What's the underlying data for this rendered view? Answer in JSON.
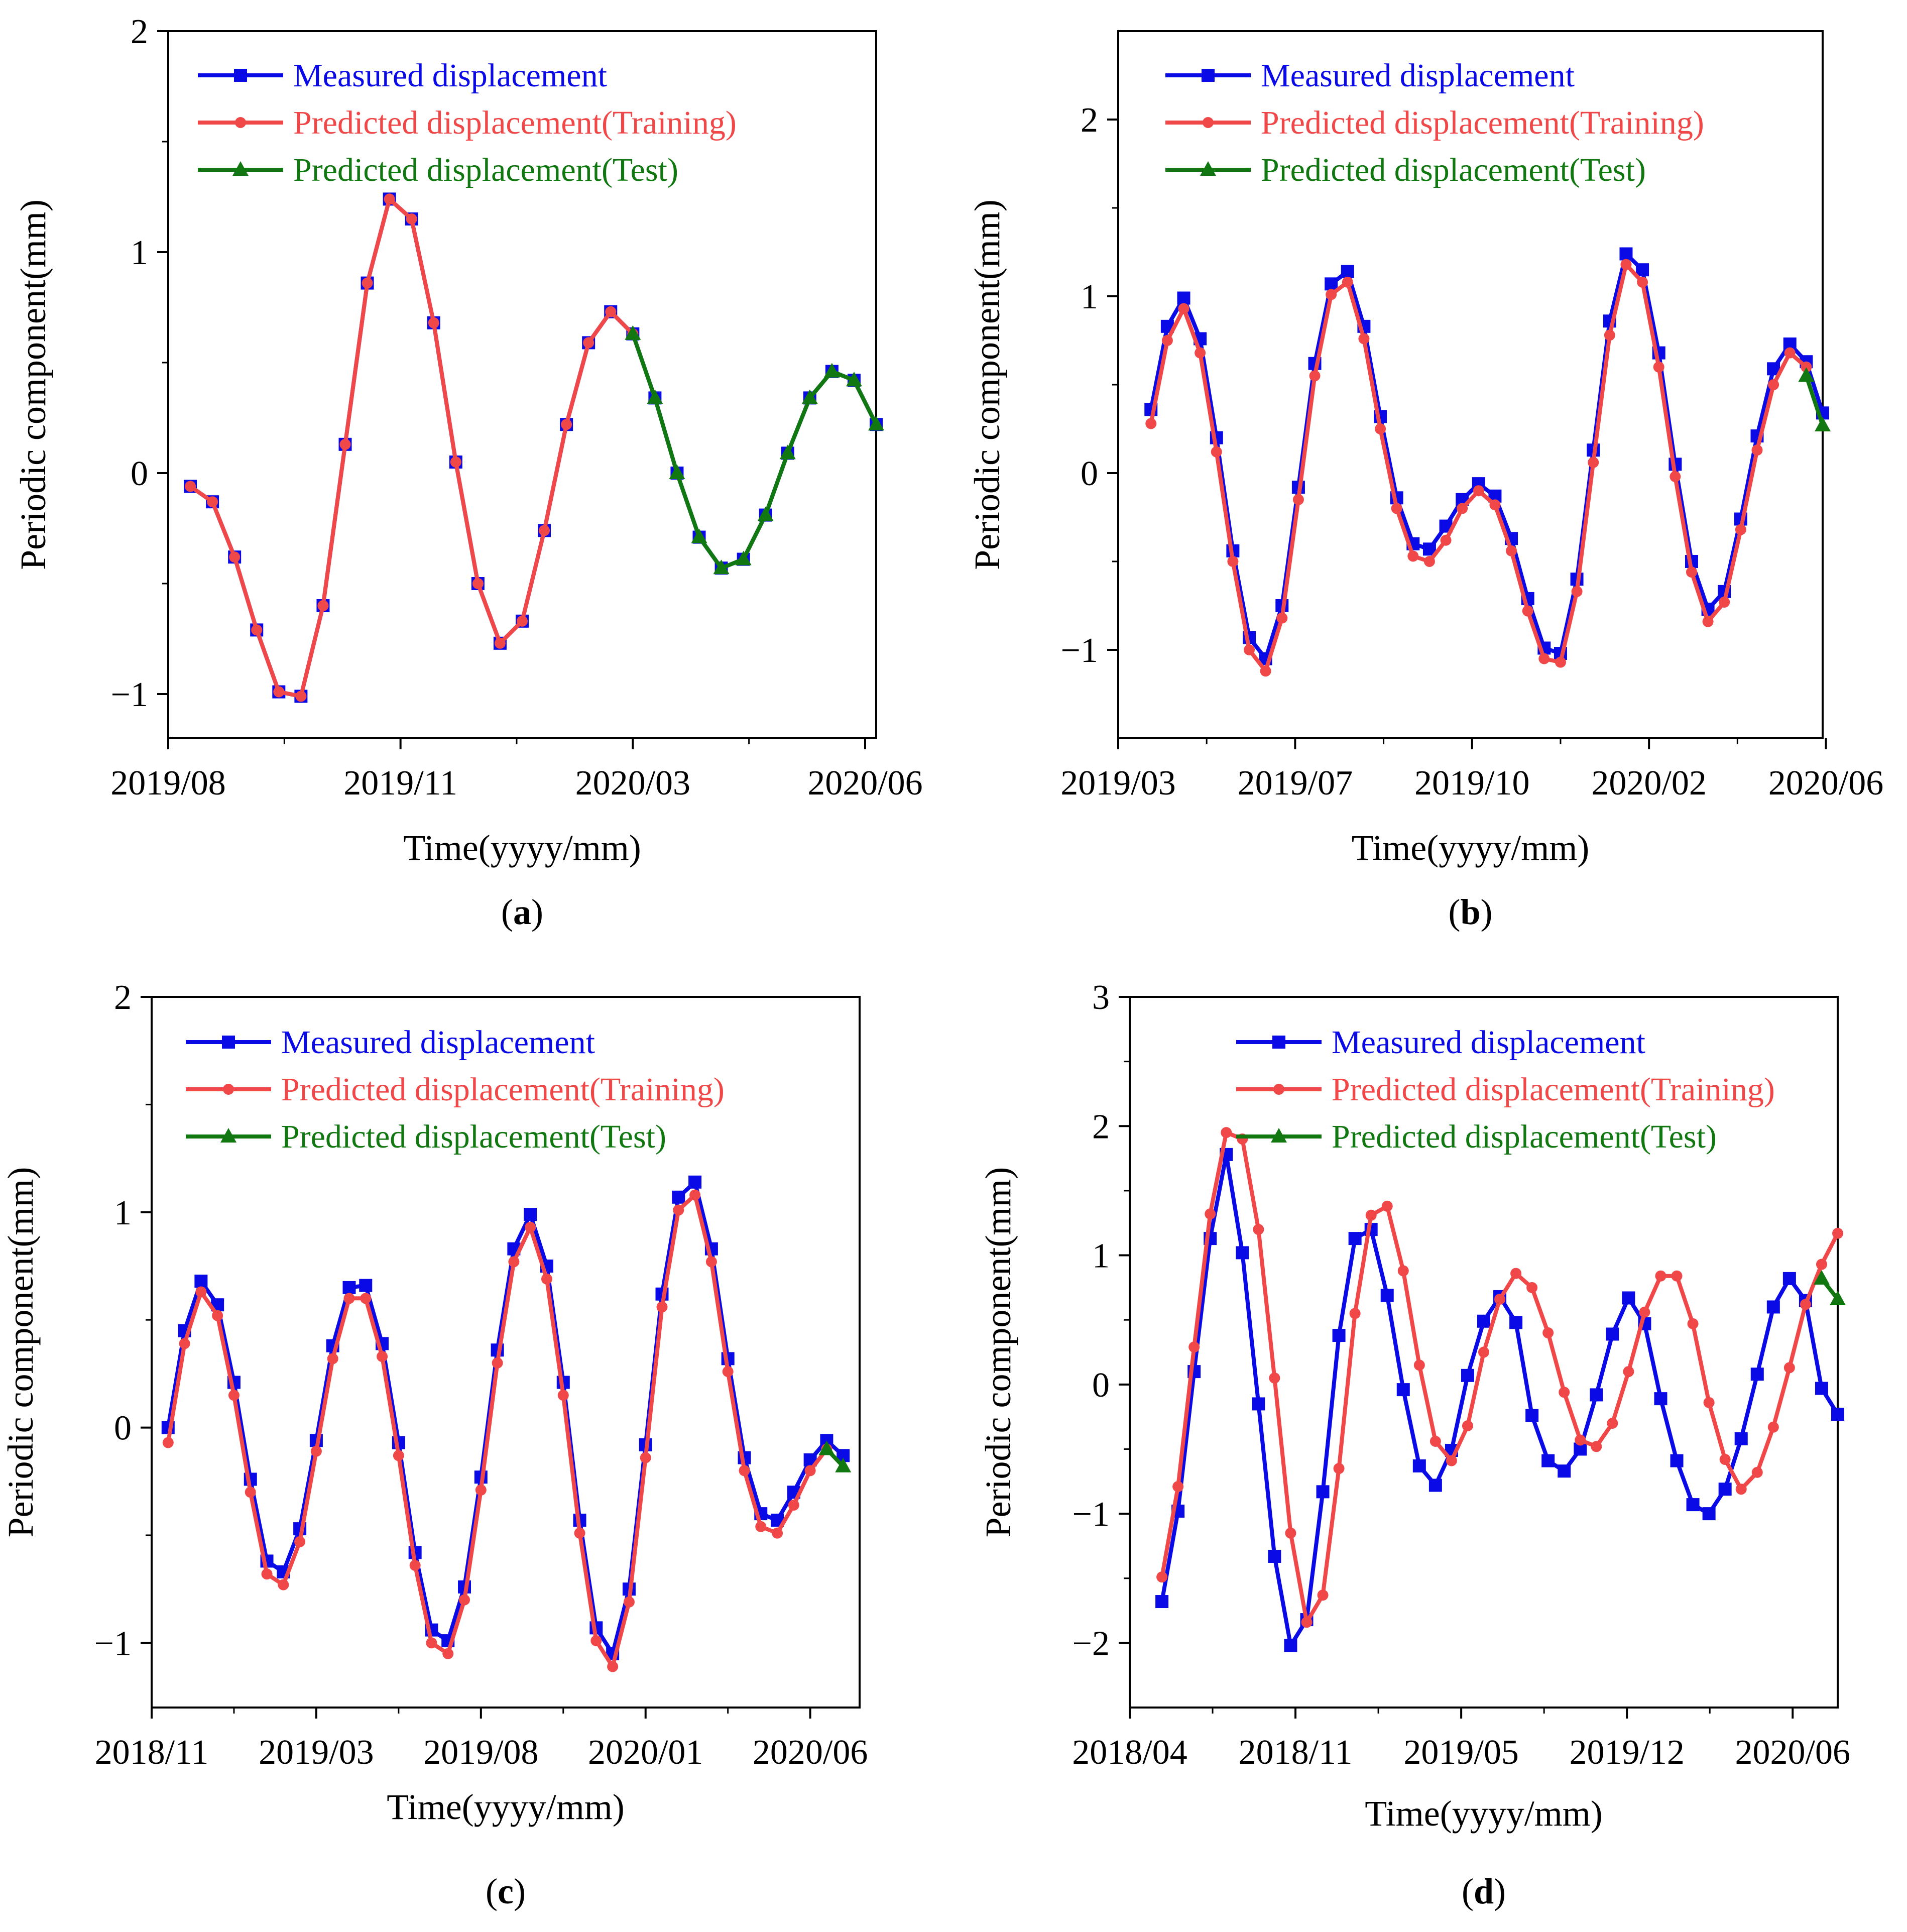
{
  "colors": {
    "measured": "#0a0ae6",
    "training": "#f04848",
    "test": "#117711",
    "axis": "#000000"
  },
  "chart_data": [
    {
      "type": "line",
      "panel_label": "a",
      "xlabel": "Time(yyyy/mm)",
      "ylabel": "Periodic component(mm)",
      "ylim": [
        -1.2,
        2
      ],
      "xlim": [
        0,
        32
      ],
      "y_ticks": [
        -1,
        0,
        1,
        2
      ],
      "y_tick_labels": [
        "−1",
        "0",
        "1",
        "2"
      ],
      "x_ticks": [
        0,
        10.5,
        21,
        31.5
      ],
      "x_tick_labels": [
        "2019/08",
        "2019/11",
        "2020/03",
        "2020/06"
      ],
      "legend": {
        "position": "top-left",
        "entries": [
          "Measured displacement",
          "Predicted displacement(Training)",
          "Predicted displacement(Test)"
        ]
      },
      "series": [
        {
          "name": "Measured displacement",
          "marker": "square",
          "x": [
            1,
            2,
            3,
            4,
            5,
            6,
            7,
            8,
            9,
            10,
            11,
            12,
            13,
            14,
            15,
            16,
            17,
            18,
            19,
            20,
            21,
            22,
            23,
            24,
            25,
            26,
            27,
            28,
            29,
            30,
            31,
            32
          ],
          "values": [
            -0.06,
            -0.13,
            -0.38,
            -0.71,
            -0.99,
            -1.01,
            -0.6,
            0.13,
            0.86,
            1.24,
            1.15,
            0.68,
            0.05,
            -0.5,
            -0.77,
            -0.67,
            -0.26,
            0.22,
            0.59,
            0.73,
            0.63,
            0.34,
            0.0,
            -0.29,
            -0.43,
            -0.39,
            -0.19,
            0.09,
            0.34,
            0.46,
            0.42,
            0.22
          ]
        },
        {
          "name": "Predicted displacement(Training)",
          "marker": "circle",
          "x": [
            1,
            2,
            3,
            4,
            5,
            6,
            7,
            8,
            9,
            10,
            11,
            12,
            13,
            14,
            15,
            16,
            17,
            18,
            19,
            20,
            21
          ],
          "values": [
            -0.06,
            -0.13,
            -0.38,
            -0.71,
            -0.99,
            -1.01,
            -0.6,
            0.13,
            0.86,
            1.24,
            1.15,
            0.68,
            0.05,
            -0.5,
            -0.77,
            -0.67,
            -0.26,
            0.22,
            0.59,
            0.73,
            0.63
          ]
        },
        {
          "name": "Predicted displacement(Test)",
          "marker": "triangle",
          "x": [
            21,
            22,
            23,
            24,
            25,
            26,
            27,
            28,
            29,
            30,
            31,
            32
          ],
          "values": [
            0.63,
            0.34,
            0.0,
            -0.29,
            -0.43,
            -0.39,
            -0.19,
            0.09,
            0.34,
            0.46,
            0.42,
            0.22
          ]
        }
      ]
    },
    {
      "type": "line",
      "panel_label": "b",
      "xlabel": "Time(yyyy/mm)",
      "ylabel": "Periodic component(mm)",
      "ylim": [
        -1.5,
        2.5
      ],
      "xlim": [
        0,
        43
      ],
      "y_ticks": [
        -1,
        0,
        1,
        2
      ],
      "y_tick_labels": [
        "−1",
        "0",
        "1",
        "2"
      ],
      "x_ticks": [
        0,
        10.8,
        21.6,
        32.4,
        43.2
      ],
      "x_tick_labels": [
        "2019/03",
        "2019/07",
        "2019/10",
        "2020/02",
        "2020/06"
      ],
      "legend": {
        "position": "top-left",
        "entries": [
          "Measured displacement",
          "Predicted displacement(Training)",
          "Predicted displacement(Test)"
        ]
      },
      "series": [
        {
          "name": "Measured displacement",
          "marker": "square",
          "x": [
            2,
            3,
            4,
            5,
            6,
            7,
            8,
            9,
            10,
            11,
            12,
            13,
            14,
            15,
            16,
            17,
            18,
            19,
            20,
            21,
            22,
            23,
            24,
            25,
            26,
            27,
            28,
            29,
            30,
            31,
            32,
            33,
            34,
            35,
            36,
            37,
            38,
            39,
            40,
            41,
            42,
            43
          ],
          "values": [
            0.36,
            0.83,
            0.99,
            0.76,
            0.2,
            -0.44,
            -0.93,
            -1.05,
            -0.75,
            -0.08,
            0.62,
            1.07,
            1.14,
            0.83,
            0.32,
            -0.14,
            -0.4,
            -0.43,
            -0.3,
            -0.15,
            -0.06,
            -0.13,
            -0.37,
            -0.71,
            -0.99,
            -1.02,
            -0.6,
            0.13,
            0.86,
            1.24,
            1.15,
            0.68,
            0.05,
            -0.5,
            -0.77,
            -0.67,
            -0.26,
            0.21,
            0.59,
            0.73,
            0.63,
            0.34
          ]
        },
        {
          "name": "Predicted displacement(Training)",
          "marker": "circle",
          "x": [
            2,
            3,
            4,
            5,
            6,
            7,
            8,
            9,
            10,
            11,
            12,
            13,
            14,
            15,
            16,
            17,
            18,
            19,
            20,
            21,
            22,
            23,
            24,
            25,
            26,
            27,
            28,
            29,
            30,
            31,
            32,
            33,
            34,
            35,
            36,
            37,
            38,
            39,
            40,
            41,
            42
          ],
          "values": [
            0.28,
            0.75,
            0.93,
            0.68,
            0.12,
            -0.5,
            -1.0,
            -1.12,
            -0.82,
            -0.15,
            0.55,
            1.01,
            1.08,
            0.76,
            0.25,
            -0.2,
            -0.47,
            -0.5,
            -0.38,
            -0.2,
            -0.1,
            -0.18,
            -0.44,
            -0.78,
            -1.05,
            -1.07,
            -0.67,
            0.06,
            0.78,
            1.18,
            1.08,
            0.6,
            -0.02,
            -0.56,
            -0.84,
            -0.73,
            -0.32,
            0.13,
            0.5,
            0.68,
            0.6
          ]
        },
        {
          "name": "Predicted displacement(Test)",
          "marker": "triangle",
          "x": [
            42,
            43
          ],
          "values": [
            0.55,
            0.27
          ]
        }
      ]
    },
    {
      "type": "line",
      "panel_label": "c",
      "xlabel": "Time(yyyy/mm)",
      "ylabel": "Periodic component(mm)",
      "ylim": [
        -1.3,
        2
      ],
      "xlim": [
        0,
        43
      ],
      "y_ticks": [
        -1,
        0,
        1,
        2
      ],
      "y_tick_labels": [
        "−1",
        "0",
        "1",
        "2"
      ],
      "x_ticks": [
        0,
        10,
        20,
        30,
        40
      ],
      "x_tick_labels": [
        "2018/11",
        "2019/03",
        "2019/08",
        "2020/01",
        "2020/06"
      ],
      "legend": {
        "position": "top-left",
        "entries": [
          "Measured displacement",
          "Predicted displacement(Training)",
          "Predicted displacement(Test)"
        ]
      },
      "series": [
        {
          "name": "Measured displacement",
          "marker": "square",
          "x": [
            1,
            2,
            3,
            4,
            5,
            6,
            7,
            8,
            9,
            10,
            11,
            12,
            13,
            14,
            15,
            16,
            17,
            18,
            19,
            20,
            21,
            22,
            23,
            24,
            25,
            26,
            27,
            28,
            29,
            30,
            31,
            32,
            33,
            34,
            35,
            36,
            37,
            38,
            39,
            40,
            41,
            42
          ],
          "values": [
            0.0,
            0.45,
            0.68,
            0.57,
            0.21,
            -0.24,
            -0.62,
            -0.67,
            -0.47,
            -0.06,
            0.38,
            0.65,
            0.66,
            0.39,
            -0.07,
            -0.58,
            -0.94,
            -0.99,
            -0.74,
            -0.23,
            0.36,
            0.83,
            0.99,
            0.75,
            0.21,
            -0.43,
            -0.93,
            -1.05,
            -0.75,
            -0.08,
            0.62,
            1.07,
            1.14,
            0.83,
            0.32,
            -0.14,
            -0.4,
            -0.43,
            -0.3,
            -0.15,
            -0.06,
            -0.13
          ]
        },
        {
          "name": "Predicted displacement(Training)",
          "marker": "circle",
          "x": [
            1,
            2,
            3,
            4,
            5,
            6,
            7,
            8,
            9,
            10,
            11,
            12,
            13,
            14,
            15,
            16,
            17,
            18,
            19,
            20,
            21,
            22,
            23,
            24,
            25,
            26,
            27,
            28,
            29,
            30,
            31,
            32,
            33,
            34,
            35,
            36,
            37,
            38,
            39,
            40,
            41
          ],
          "values": [
            -0.07,
            0.39,
            0.63,
            0.52,
            0.15,
            -0.3,
            -0.68,
            -0.73,
            -0.53,
            -0.11,
            0.32,
            0.6,
            0.6,
            0.33,
            -0.13,
            -0.64,
            -1.0,
            -1.05,
            -0.8,
            -0.29,
            0.3,
            0.77,
            0.93,
            0.69,
            0.15,
            -0.49,
            -0.99,
            -1.11,
            -0.81,
            -0.14,
            0.56,
            1.01,
            1.08,
            0.77,
            0.26,
            -0.2,
            -0.46,
            -0.49,
            -0.36,
            -0.2,
            -0.1
          ]
        },
        {
          "name": "Predicted displacement(Test)",
          "marker": "triangle",
          "x": [
            41,
            42
          ],
          "values": [
            -0.1,
            -0.18
          ]
        }
      ]
    },
    {
      "type": "line",
      "panel_label": "d",
      "xlabel": "Time(yyyy/mm)",
      "ylabel": "Periodic component(mm)",
      "ylim": [
        -2.5,
        3
      ],
      "xlim": [
        0,
        44
      ],
      "y_ticks": [
        -2,
        -1,
        0,
        1,
        2,
        3
      ],
      "y_tick_labels": [
        "−2",
        "−1",
        "0",
        "1",
        "2",
        "3"
      ],
      "x_ticks": [
        0,
        10.3,
        20.6,
        30.9,
        41.2
      ],
      "x_tick_labels": [
        "2018/04",
        "2018/11",
        "2019/05",
        "2019/12",
        "2020/06"
      ],
      "legend": {
        "position": "top-right",
        "entries": [
          "Measured displacement",
          "Predicted displacement(Training)",
          "Predicted displacement(Test)"
        ]
      },
      "series": [
        {
          "name": "Measured displacement",
          "marker": "square",
          "x": [
            2,
            3,
            4,
            5,
            6,
            7,
            8,
            9,
            10,
            11,
            12,
            13,
            14,
            15,
            16,
            17,
            18,
            19,
            20,
            21,
            22,
            23,
            24,
            25,
            26,
            27,
            28,
            29,
            30,
            31,
            32,
            33,
            34,
            35,
            36,
            37,
            38,
            39,
            40,
            41,
            42,
            43,
            44
          ],
          "values": [
            -1.68,
            -0.98,
            0.1,
            1.13,
            1.78,
            1.02,
            -0.15,
            -1.33,
            -2.02,
            -1.82,
            -0.83,
            0.38,
            1.13,
            1.2,
            0.69,
            -0.04,
            -0.63,
            -0.78,
            -0.51,
            0.07,
            0.49,
            0.68,
            0.48,
            -0.24,
            -0.59,
            -0.67,
            -0.5,
            -0.08,
            0.39,
            0.67,
            0.47,
            -0.11,
            -0.59,
            -0.93,
            -1.0,
            -0.81,
            -0.42,
            0.08,
            0.6,
            0.82,
            0.65,
            -0.03,
            -0.23
          ]
        },
        {
          "name": "Predicted displacement(Training)",
          "marker": "circle",
          "x": [
            2,
            3,
            4,
            5,
            6,
            7,
            8,
            9,
            10,
            11,
            12,
            13,
            14,
            15,
            16,
            17,
            18,
            19,
            20,
            21,
            22,
            23,
            24,
            25,
            26,
            27,
            28,
            29,
            30,
            31,
            32,
            33,
            34,
            35,
            36,
            37,
            38,
            39,
            40,
            41,
            42,
            43,
            44
          ],
          "values": [
            -1.49,
            -0.79,
            0.29,
            1.32,
            1.95,
            1.9,
            1.2,
            0.05,
            -1.15,
            -1.84,
            -1.63,
            -0.65,
            0.55,
            1.31,
            1.38,
            0.88,
            0.15,
            -0.44,
            -0.59,
            -0.32,
            0.25,
            0.66,
            0.86,
            0.75,
            0.4,
            -0.06,
            -0.43,
            -0.48,
            -0.3,
            0.1,
            0.56,
            0.84,
            0.84,
            0.47,
            -0.14,
            -0.58,
            -0.81,
            -0.68,
            -0.33,
            0.13,
            0.62,
            0.93,
            1.17
          ]
        },
        {
          "name": "Predicted displacement(Test)",
          "marker": "triangle",
          "x": [
            43,
            44
          ],
          "values": [
            0.82,
            0.66
          ]
        }
      ]
    }
  ]
}
